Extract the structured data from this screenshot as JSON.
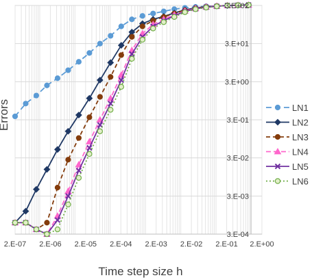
{
  "chart_data": {
    "type": "line",
    "xlabel": "Time step size h",
    "ylabel": "Errors",
    "x_scale": "log",
    "y_scale": "log",
    "x_ticks": [
      "2.E-07",
      "2.E-06",
      "2.E-05",
      "2.E-04",
      "2.E-03",
      "2.E-02",
      "2.E-01",
      "2.E+00"
    ],
    "y_ticks": [
      "3.E-04",
      "3.E-03",
      "3.E-02",
      "3.E-01",
      "3.E+00",
      "3.E+01",
      "3.E+02"
    ],
    "xlim": [
      2e-07,
      2
    ],
    "ylim": [
      0.0003,
      300
    ],
    "grid": true,
    "legend_position": "right",
    "series": [
      {
        "name": "LN1",
        "color": "#5b9bd5",
        "dash": "8,5",
        "marker": "circle",
        "marker_fill": "#5b9bd5",
        "x": [
          2e-07,
          4e-07,
          8e-07,
          1.6e-06,
          3.2e-06,
          6.4e-06,
          1.28e-05,
          2.56e-05,
          5.12e-05,
          0.000102,
          0.000205,
          0.00041,
          0.00082,
          0.00164,
          0.00328,
          0.00655,
          0.0131,
          0.0262,
          0.0524,
          0.105,
          0.21,
          0.419,
          0.839
        ],
        "y": [
          0.37,
          0.8,
          1.3,
          2.4,
          3.7,
          6,
          10,
          17,
          30,
          48,
          85,
          130,
          160,
          185,
          210,
          240,
          260,
          275,
          285,
          290,
          295,
          300,
          310
        ]
      },
      {
        "name": "LN2",
        "color": "#1f3864",
        "dash": "",
        "marker": "diamond",
        "marker_fill": "#1f3864",
        "x": [
          2e-07,
          4e-07,
          8e-07,
          1.6e-06,
          3.2e-06,
          6.4e-06,
          1.28e-05,
          2.56e-05,
          5.12e-05,
          0.000102,
          0.000205,
          0.00041,
          0.00082,
          0.00164,
          0.00328,
          0.00655,
          0.0131,
          0.0262,
          0.0524,
          0.105,
          0.21,
          0.419,
          0.839
        ],
        "y": [
          0.0006,
          0.0012,
          0.0045,
          0.015,
          0.05,
          0.15,
          0.4,
          1.1,
          3.3,
          9.5,
          27,
          60,
          100,
          130,
          155,
          190,
          230,
          260,
          280,
          290,
          300,
          305,
          310
        ]
      },
      {
        "name": "LN3",
        "color": "#843c0c",
        "dash": "6,4",
        "marker": "circle",
        "marker_fill": "#843c0c",
        "x": [
          2e-07,
          4e-07,
          8e-07,
          1.6e-06,
          3.2e-06,
          6.4e-06,
          1.28e-05,
          2.56e-05,
          5.12e-05,
          0.000102,
          0.000205,
          0.00041,
          0.00082,
          0.00164,
          0.00328,
          0.00655,
          0.0131,
          0.0262,
          0.0524,
          0.105,
          0.21,
          0.419,
          0.839
        ],
        "y": [
          0.0006,
          0.0006,
          0.0004,
          0.0006,
          0.005,
          0.027,
          0.1,
          0.35,
          1.2,
          4,
          15,
          45,
          85,
          120,
          150,
          185,
          225,
          255,
          275,
          290,
          300,
          305,
          310
        ]
      },
      {
        "name": "LN4",
        "color": "#ff66cc",
        "dash": "7,4",
        "marker": "triangle",
        "marker_fill": "#ff66cc",
        "x": [
          2e-07,
          4e-07,
          8e-07,
          1.6e-06,
          3.2e-06,
          6.4e-06,
          1.28e-05,
          2.56e-05,
          5.12e-05,
          0.000102,
          0.000205,
          0.00041,
          0.00082,
          0.00164,
          0.00328,
          0.00655,
          0.0131,
          0.0262,
          0.0524,
          0.105,
          0.21,
          0.419,
          0.839
        ],
        "y": [
          0.0006,
          0.0006,
          0.0004,
          0.0003,
          0.0009,
          0.004,
          0.02,
          0.08,
          0.3,
          1.1,
          4.5,
          20,
          55,
          95,
          130,
          170,
          215,
          250,
          275,
          290,
          300,
          305,
          310
        ]
      },
      {
        "name": "LN5",
        "color": "#7030a0",
        "dash": "",
        "marker": "x",
        "marker_fill": "#7030a0",
        "x": [
          2e-07,
          4e-07,
          8e-07,
          1.6e-06,
          3.2e-06,
          6.4e-06,
          1.28e-05,
          2.56e-05,
          5.12e-05,
          0.000102,
          0.000205,
          0.00041,
          0.00082,
          0.00164,
          0.00328,
          0.00655,
          0.0131,
          0.0262,
          0.0524,
          0.105,
          0.21,
          0.419,
          0.839
        ],
        "y": [
          0.0006,
          0.0006,
          0.0004,
          0.0003,
          0.0007,
          0.003,
          0.014,
          0.055,
          0.22,
          0.8,
          3.3,
          16,
          45,
          85,
          120,
          160,
          210,
          245,
          270,
          285,
          300,
          305,
          310
        ]
      },
      {
        "name": "LN6",
        "color": "#70ad47",
        "dash": "2,3",
        "marker": "circle-open",
        "marker_fill": "#e2efc9",
        "x": [
          2e-07,
          4e-07,
          8e-07,
          1.6e-06,
          3.2e-06,
          6.4e-06,
          1.28e-05,
          2.56e-05,
          5.12e-05,
          0.000102,
          0.000205,
          0.00041,
          0.00082,
          0.00164,
          0.00328,
          0.00655,
          0.0131,
          0.0262,
          0.0524,
          0.105,
          0.21,
          0.419,
          0.839
        ],
        "y": [
          0.0006,
          0.0006,
          0.0004,
          0.0002,
          0.0004,
          0.0018,
          0.009,
          0.038,
          0.15,
          0.55,
          2.2,
          12,
          38,
          75,
          110,
          150,
          200,
          240,
          265,
          285,
          300,
          305,
          310
        ]
      }
    ]
  }
}
